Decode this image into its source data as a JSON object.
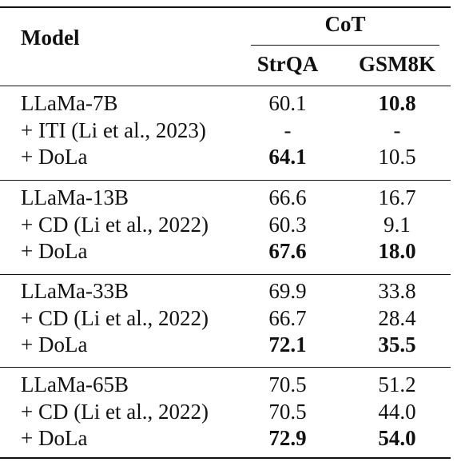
{
  "header": {
    "model_label": "Model",
    "group_label": "CoT",
    "columns": [
      "StrQA",
      "GSM8K"
    ]
  },
  "groups": [
    {
      "rows": [
        {
          "model": "LLaMa-7B",
          "strqa": "60.1",
          "gsm8k": "10.8",
          "bold_strqa": false,
          "bold_gsm8k": true
        },
        {
          "model": "+ ITI (Li et al., 2023)",
          "strqa": "-",
          "gsm8k": "-",
          "bold_strqa": false,
          "bold_gsm8k": false
        },
        {
          "model": "+ DoLa",
          "strqa": "64.1",
          "gsm8k": "10.5",
          "bold_strqa": true,
          "bold_gsm8k": false
        }
      ]
    },
    {
      "rows": [
        {
          "model": "LLaMa-13B",
          "strqa": "66.6",
          "gsm8k": "16.7",
          "bold_strqa": false,
          "bold_gsm8k": false
        },
        {
          "model": "+ CD (Li et al., 2022)",
          "strqa": "60.3",
          "gsm8k": "9.1",
          "bold_strqa": false,
          "bold_gsm8k": false
        },
        {
          "model": "+ DoLa",
          "strqa": "67.6",
          "gsm8k": "18.0",
          "bold_strqa": true,
          "bold_gsm8k": true
        }
      ]
    },
    {
      "rows": [
        {
          "model": "LLaMa-33B",
          "strqa": "69.9",
          "gsm8k": "33.8",
          "bold_strqa": false,
          "bold_gsm8k": false
        },
        {
          "model": "+ CD (Li et al., 2022)",
          "strqa": "66.7",
          "gsm8k": "28.4",
          "bold_strqa": false,
          "bold_gsm8k": false
        },
        {
          "model": "+ DoLa",
          "strqa": "72.1",
          "gsm8k": "35.5",
          "bold_strqa": true,
          "bold_gsm8k": true
        }
      ]
    },
    {
      "rows": [
        {
          "model": "LLaMa-65B",
          "strqa": "70.5",
          "gsm8k": "51.2",
          "bold_strqa": false,
          "bold_gsm8k": false
        },
        {
          "model": "+ CD (Li et al., 2022)",
          "strqa": "70.5",
          "gsm8k": "44.0",
          "bold_strqa": false,
          "bold_gsm8k": false
        },
        {
          "model": "+ DoLa",
          "strqa": "72.9",
          "gsm8k": "54.0",
          "bold_strqa": true,
          "bold_gsm8k": true
        }
      ]
    }
  ]
}
